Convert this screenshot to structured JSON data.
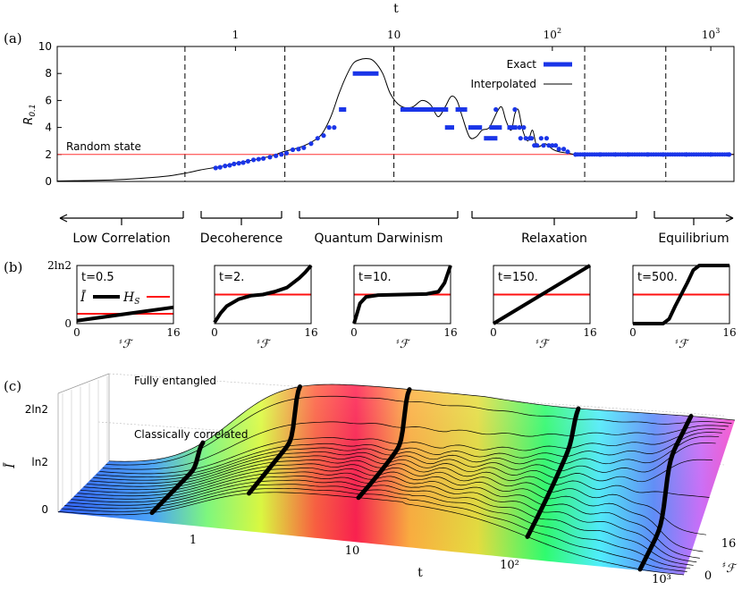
{
  "panel_labels": {
    "a": "(a)",
    "b": "(b)",
    "c": "(c)"
  },
  "chart_data": [
    {
      "type": "line",
      "panel": "(a)",
      "xlabel": "t",
      "ylabel": "R",
      "ylabel_sub": "0.1",
      "xscale": "log",
      "xlim": [
        0.075,
        1400
      ],
      "ylim": [
        0,
        10
      ],
      "x_ticks": [
        {
          "value": 1,
          "label": "1"
        },
        {
          "value": 10,
          "label": "10"
        },
        {
          "value": 100,
          "label": "10",
          "sup": "2"
        },
        {
          "value": 1000,
          "label": "10",
          "sup": "3"
        }
      ],
      "y_ticks": [
        0,
        2,
        4,
        6,
        8,
        10
      ],
      "y_tick_labels": [
        "0",
        "2",
        "4",
        "6",
        "8",
        "10"
      ],
      "reference_line": {
        "label": "Random state",
        "y": 2.0,
        "color": "#ff3333"
      },
      "dividers_t": [
        0.48,
        2.05,
        10.0,
        160,
        520
      ],
      "legend": {
        "placement": "top-right",
        "exact": "Exact",
        "interpolated": "Interpolated"
      },
      "interpolated": [
        [
          0.075,
          0.03
        ],
        [
          0.1,
          0.06
        ],
        [
          0.15,
          0.1
        ],
        [
          0.2,
          0.16
        ],
        [
          0.3,
          0.3
        ],
        [
          0.4,
          0.45
        ],
        [
          0.5,
          0.65
        ],
        [
          0.6,
          0.85
        ],
        [
          0.8,
          1.1
        ],
        [
          1.0,
          1.35
        ],
        [
          1.3,
          1.6
        ],
        [
          1.7,
          1.9
        ],
        [
          2.0,
          2.2
        ],
        [
          2.5,
          2.5
        ],
        [
          3.0,
          2.9
        ],
        [
          3.5,
          3.5
        ],
        [
          4.0,
          4.8
        ],
        [
          4.5,
          6.5
        ],
        [
          5.0,
          7.8
        ],
        [
          5.5,
          8.7
        ],
        [
          6.0,
          9.0
        ],
        [
          6.8,
          9.1
        ],
        [
          7.5,
          8.9
        ],
        [
          8.5,
          8.0
        ],
        [
          9.5,
          6.5
        ],
        [
          11,
          5.6
        ],
        [
          13,
          5.5
        ],
        [
          15,
          6.0
        ],
        [
          17,
          5.7
        ],
        [
          19,
          4.8
        ],
        [
          21,
          5.5
        ],
        [
          23,
          6.3
        ],
        [
          25,
          6.0
        ],
        [
          27,
          4.8
        ],
        [
          30,
          3.3
        ],
        [
          33,
          3.3
        ],
        [
          36,
          3.8
        ],
        [
          40,
          4.0
        ],
        [
          45,
          5.2
        ],
        [
          48,
          5.5
        ],
        [
          51,
          4.5
        ],
        [
          55,
          3.8
        ],
        [
          58,
          5.0
        ],
        [
          61,
          5.3
        ],
        [
          65,
          3.8
        ],
        [
          70,
          3.0
        ],
        [
          75,
          3.8
        ],
        [
          80,
          2.6
        ],
        [
          90,
          2.8
        ],
        [
          100,
          2.4
        ],
        [
          110,
          2.2
        ],
        [
          125,
          2.1
        ],
        [
          140,
          2.0
        ],
        [
          170,
          2.0
        ],
        [
          250,
          2.0
        ],
        [
          500,
          2.0
        ],
        [
          1000,
          2.0
        ],
        [
          1400,
          2.0
        ]
      ],
      "exact_points": [
        [
          0.75,
          1.0
        ],
        [
          0.8,
          1.05
        ],
        [
          0.86,
          1.15
        ],
        [
          0.92,
          1.2
        ],
        [
          0.98,
          1.3
        ],
        [
          1.05,
          1.35
        ],
        [
          1.12,
          1.4
        ],
        [
          1.2,
          1.5
        ],
        [
          1.3,
          1.6
        ],
        [
          1.4,
          1.65
        ],
        [
          1.5,
          1.7
        ],
        [
          1.65,
          1.8
        ],
        [
          1.8,
          1.9
        ],
        [
          1.95,
          2.0
        ],
        [
          2.1,
          2.1
        ],
        [
          2.3,
          2.35
        ],
        [
          2.5,
          2.4
        ],
        [
          2.7,
          2.5
        ],
        [
          3.0,
          2.8
        ],
        [
          3.3,
          3.2
        ],
        [
          3.6,
          3.4
        ],
        [
          3.9,
          4.0
        ],
        [
          4.2,
          4.0
        ]
      ],
      "exact_segments": [
        [
          4.5,
          5.0,
          5.33
        ],
        [
          5.5,
          8.0,
          8.0
        ],
        [
          11.0,
          22.0,
          5.33
        ],
        [
          24.5,
          29.0,
          5.33
        ],
        [
          21.0,
          24.0,
          4.0
        ],
        [
          29.5,
          36.0,
          4.0
        ],
        [
          40.0,
          48.0,
          4.0
        ],
        [
          37.0,
          45.0,
          3.2
        ],
        [
          52.0,
          60.0,
          4.0
        ]
      ],
      "exact_scatter": [
        [
          44,
          5.33
        ],
        [
          58,
          5.33
        ],
        [
          62,
          4.0
        ],
        [
          63,
          3.2
        ],
        [
          66,
          4.0
        ],
        [
          68,
          3.2
        ],
        [
          72,
          3.2
        ],
        [
          74,
          3.2
        ],
        [
          77,
          2.67
        ],
        [
          80,
          2.67
        ],
        [
          85,
          3.2
        ],
        [
          88,
          2.67
        ],
        [
          92,
          3.2
        ],
        [
          95,
          2.67
        ],
        [
          100,
          2.67
        ],
        [
          105,
          2.67
        ],
        [
          110,
          2.4
        ],
        [
          118,
          2.4
        ],
        [
          125,
          2.2
        ],
        [
          140,
          2.0
        ],
        [
          160,
          2.0
        ],
        [
          200,
          2.0
        ],
        [
          250,
          2.0
        ],
        [
          300,
          2.0
        ],
        [
          400,
          2.0
        ],
        [
          500,
          2.0
        ],
        [
          700,
          2.0
        ],
        [
          1000,
          2.0
        ],
        [
          1300,
          2.0
        ]
      ],
      "regimes": [
        "Low Correlation",
        "Decoherence",
        "Quantum Darwinism",
        "Relaxation",
        "Equilibrium"
      ]
    },
    {
      "type": "line",
      "panel": "(b)",
      "xlabel": "#F",
      "x_ticks": [
        "0",
        "16"
      ],
      "y_ticks": [
        "0",
        "2ln2"
      ],
      "legend": [
        "Ī",
        "H_S"
      ],
      "subplots": [
        {
          "title": "t=0.5",
          "I_bar": [
            [
              0,
              0.05
            ],
            [
              16,
              0.28
            ]
          ],
          "H_S": 0.17
        },
        {
          "title": "t=2.",
          "I_bar": [
            [
              0,
              0.02
            ],
            [
              1,
              0.18
            ],
            [
              2,
              0.3
            ],
            [
              4,
              0.42
            ],
            [
              6,
              0.48
            ],
            [
              8,
              0.5
            ],
            [
              10,
              0.55
            ],
            [
              12,
              0.62
            ],
            [
              14,
              0.78
            ],
            [
              15,
              0.88
            ],
            [
              16,
              1.0
            ]
          ],
          "H_S": 0.5
        },
        {
          "title": "t=10.",
          "I_bar": [
            [
              0,
              0.0
            ],
            [
              1,
              0.35
            ],
            [
              2,
              0.46
            ],
            [
              4,
              0.49
            ],
            [
              8,
              0.5
            ],
            [
              12,
              0.51
            ],
            [
              14,
              0.55
            ],
            [
              15,
              0.7
            ],
            [
              16,
              1.0
            ]
          ],
          "H_S": 0.5
        },
        {
          "title": "t=150.",
          "I_bar": [
            [
              0,
              0.0
            ],
            [
              16,
              1.0
            ]
          ],
          "H_S": 0.5
        },
        {
          "title": "t=500.",
          "I_bar": [
            [
              0,
              0.0
            ],
            [
              5,
              0.0
            ],
            [
              6,
              0.08
            ],
            [
              7,
              0.3
            ],
            [
              8,
              0.5
            ],
            [
              9,
              0.7
            ],
            [
              10,
              0.92
            ],
            [
              11,
              1.0
            ],
            [
              16,
              1.0
            ]
          ],
          "H_S": 0.5
        }
      ]
    },
    {
      "type": "area",
      "panel": "(c)",
      "xlabel": "t",
      "ylabel": "#F",
      "zlabel": "Ī",
      "x_ticks": [
        "1",
        "10",
        "10²",
        "10³"
      ],
      "y_ticks": [
        "0",
        "16"
      ],
      "z_ticks": [
        "0",
        "ln2",
        "2ln2"
      ],
      "annotations": [
        "Fully entangled",
        "Classically correlated"
      ]
    }
  ]
}
